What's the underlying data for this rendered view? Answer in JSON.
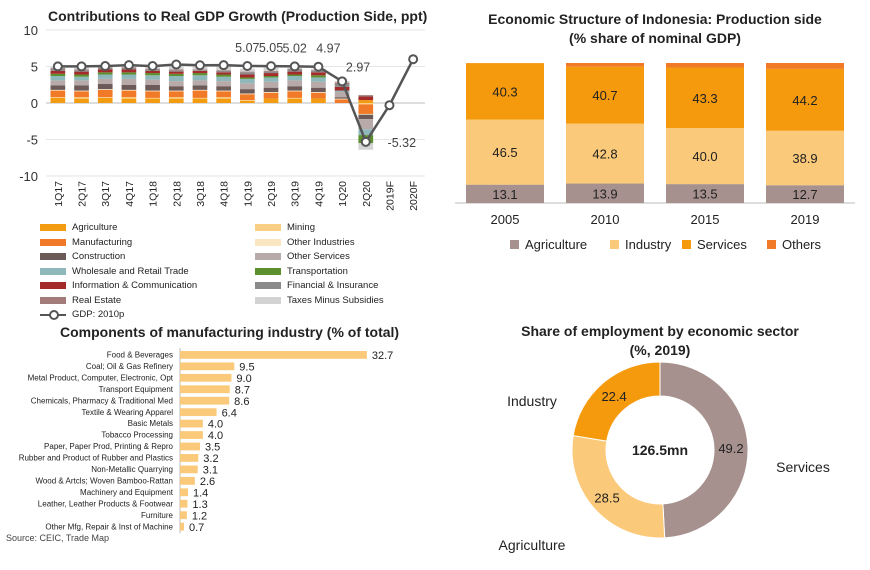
{
  "colors": {
    "agriculture": "#f39c12",
    "mining": "#f9cf86",
    "manufacturing": "#f07a28",
    "other_industries": "#fbe6c2",
    "construction": "#6b5a57",
    "other_services": "#b8aaa8",
    "wholesale": "#8eb8ba",
    "transportation": "#5c8f2d",
    "info_comm": "#a52a2a",
    "financial": "#8a8a8a",
    "real_estate": "#a37c7a",
    "taxes": "#d3d3d3",
    "gdp_line": "#555555",
    "struct_agriculture": "#a6918e",
    "struct_industry": "#fbc97a",
    "struct_services": "#f59a0d",
    "struct_others": "#f07a28",
    "bar_fill": "#fbc97a",
    "donut_services": "#a6918e",
    "donut_agriculture": "#fbc97a",
    "donut_industry": "#f59a0d"
  },
  "source": "Source: CEIC, Trade Map",
  "chart_data": [
    {
      "type": "bar",
      "stacked": true,
      "title": "Contributions to Real GDP Growth (Production Side, ppt)",
      "categories": [
        "1Q17",
        "2Q17",
        "3Q17",
        "4Q17",
        "1Q18",
        "2Q18",
        "3Q18",
        "4Q18",
        "1Q19",
        "2Q19",
        "3Q19",
        "4Q19",
        "1Q20",
        "2Q20",
        "2019F",
        "2020F"
      ],
      "ylim": [
        -10,
        10
      ],
      "yticks": [
        "10",
        "5",
        "0",
        "-5",
        "-10"
      ],
      "yticks_values": [
        10,
        5,
        0,
        -5,
        -10
      ],
      "series": [
        {
          "name": "Agriculture",
          "key": "agriculture",
          "values": [
            0.7,
            0.6,
            0.7,
            0.6,
            0.6,
            0.6,
            0.6,
            0.6,
            0.3,
            0.6,
            0.6,
            0.6,
            0.0,
            0.4,
            null,
            null
          ]
        },
        {
          "name": "Mining",
          "key": "mining",
          "values": [
            0.1,
            0.2,
            0.1,
            0.2,
            0.1,
            0.2,
            0.1,
            0.2,
            0.1,
            0.0,
            0.1,
            0.0,
            0.0,
            -0.2,
            null,
            null
          ]
        },
        {
          "name": "Manufacturing",
          "key": "manufacturing",
          "values": [
            0.9,
            0.8,
            1.0,
            0.9,
            0.9,
            0.8,
            1.0,
            0.8,
            0.8,
            0.8,
            0.9,
            0.8,
            0.5,
            -1.3,
            null,
            null
          ]
        },
        {
          "name": "Other Industries",
          "key": "other_industries",
          "values": [
            0.1,
            0.1,
            0.1,
            0.1,
            0.1,
            0.1,
            0.1,
            0.1,
            0.1,
            0.1,
            0.1,
            0.1,
            0.1,
            -0.1,
            null,
            null
          ]
        },
        {
          "name": "Construction",
          "key": "construction",
          "values": [
            0.6,
            0.7,
            0.7,
            0.7,
            0.8,
            0.6,
            0.6,
            0.6,
            0.6,
            0.6,
            0.6,
            0.6,
            0.2,
            -0.6,
            null,
            null
          ]
        },
        {
          "name": "Other Services",
          "key": "other_services",
          "values": [
            0.7,
            0.7,
            0.7,
            0.8,
            0.7,
            0.7,
            0.7,
            0.7,
            0.8,
            0.8,
            0.8,
            0.8,
            0.7,
            -1.4,
            null,
            null
          ]
        },
        {
          "name": "Wholesale and Retail Trade",
          "key": "wholesale",
          "values": [
            0.6,
            0.5,
            0.6,
            0.6,
            0.6,
            0.7,
            0.7,
            0.6,
            0.6,
            0.6,
            0.6,
            0.6,
            0.2,
            -0.8,
            null,
            null
          ]
        },
        {
          "name": "Transportation",
          "key": "transportation",
          "values": [
            0.3,
            0.3,
            0.3,
            0.3,
            0.3,
            0.3,
            0.3,
            0.3,
            0.2,
            0.2,
            0.2,
            0.3,
            0.0,
            -1.1,
            null,
            null
          ]
        },
        {
          "name": "Information & Communication",
          "key": "info_comm",
          "values": [
            0.4,
            0.4,
            0.4,
            0.4,
            0.3,
            0.3,
            0.3,
            0.3,
            0.4,
            0.4,
            0.4,
            0.4,
            0.5,
            0.5,
            null,
            null
          ]
        },
        {
          "name": "Financial & Insurance",
          "key": "financial",
          "values": [
            0.3,
            0.2,
            0.2,
            0.2,
            0.2,
            0.2,
            0.1,
            0.2,
            0.3,
            0.2,
            0.3,
            0.2,
            0.4,
            0.1,
            null,
            null
          ]
        },
        {
          "name": "Real Estate",
          "key": "real_estate",
          "values": [
            0.1,
            0.1,
            0.1,
            0.1,
            0.1,
            0.1,
            0.1,
            0.1,
            0.1,
            0.1,
            0.1,
            0.1,
            0.2,
            0.1,
            null,
            null
          ]
        },
        {
          "name": "Taxes Minus Subsidies",
          "key": "taxes",
          "values": [
            0.2,
            0.4,
            0.2,
            0.3,
            0.4,
            0.7,
            0.5,
            0.6,
            0.4,
            0.5,
            0.1,
            0.2,
            0.2,
            -0.9,
            null,
            null
          ]
        }
      ],
      "line": {
        "name": "GDP: 2010p",
        "key": "gdp_line",
        "values": [
          5.01,
          5.01,
          5.06,
          5.19,
          5.06,
          5.27,
          5.17,
          5.18,
          5.07,
          5.05,
          5.02,
          4.97,
          2.97,
          -5.32,
          -0.3,
          6.0
        ]
      },
      "data_labels": [
        {
          "index": 8,
          "text": "5.07"
        },
        {
          "index": 9,
          "text": "5.05"
        },
        {
          "index": 10,
          "text": "5.02"
        },
        {
          "index": 11,
          "text": "4.97"
        },
        {
          "index": 12,
          "text": "2.97"
        },
        {
          "index": 13,
          "text": "-5.32"
        }
      ],
      "legend": [
        "Agriculture",
        "Mining",
        "Manufacturing",
        "Other Industries",
        "Construction",
        "Other Services",
        "Wholesale and Retail Trade",
        "Transportation",
        "Information & Communication",
        "Financial & Insurance",
        "Real Estate",
        "Taxes Minus Subsidies",
        "GDP: 2010p"
      ],
      "legend_position": "bottom",
      "grid": true
    },
    {
      "type": "bar",
      "stacked": true,
      "title": "Economic Structure of Indonesia: Production side",
      "subtitle": "(% share of nominal GDP)",
      "categories": [
        "2005",
        "2010",
        "2015",
        "2019"
      ],
      "series": [
        {
          "name": "Agriculture",
          "key": "struct_agriculture",
          "values": [
            13.1,
            13.9,
            13.5,
            12.7
          ],
          "labels": [
            "13.1",
            "13.9",
            "13.5",
            "12.7"
          ]
        },
        {
          "name": "Industry",
          "key": "struct_industry",
          "values": [
            46.5,
            42.8,
            40.0,
            38.9
          ],
          "labels": [
            "46.5",
            "42.8",
            "40.0",
            "38.9"
          ]
        },
        {
          "name": "Services",
          "key": "struct_services",
          "values": [
            40.3,
            40.7,
            43.3,
            44.2
          ],
          "labels": [
            "40.3",
            "40.7",
            "43.3",
            "44.2"
          ]
        },
        {
          "name": "Others",
          "key": "struct_others",
          "values": [
            0.1,
            2.6,
            3.2,
            4.2
          ]
        }
      ],
      "ylim": [
        0,
        100
      ],
      "legend_position": "bottom",
      "grid": false
    },
    {
      "type": "bar",
      "orientation": "horizontal",
      "title": "Components of manufacturing industry (% of total)",
      "categories": [
        "Food & Beverages",
        "Coal; Oil & Gas Refinery",
        "Metal Product, Computer, Electronic, Opt",
        "Transport Equipment",
        "Chemicals, Pharmacy & Traditional Med",
        "Textile & Wearing Apparel",
        "Basic Metals",
        "Tobacco Processing",
        "Paper, Paper Prod, Printing & Repro",
        "Rubber and Product of Rubber and Plastics",
        "Non-Metallic Quarrying",
        "Wood & Artcls; Woven Bamboo-Rattan",
        "Machinery and Equipment",
        "Leather, Leather Products & Footwear",
        "Furniture",
        "Other Mfg, Repair & Inst of Machine"
      ],
      "values": [
        32.7,
        9.5,
        9.0,
        8.7,
        8.6,
        6.4,
        4.0,
        4.0,
        3.5,
        3.2,
        3.1,
        2.6,
        1.4,
        1.3,
        1.2,
        0.7
      ],
      "labels": [
        "32.7",
        "9.5",
        "9.0",
        "8.7",
        "8.6",
        "6.4",
        "4.0",
        "4.0",
        "3.5",
        "3.2",
        "3.1",
        "2.6",
        "1.4",
        "1.3",
        "1.2",
        "0.7"
      ],
      "xlim": [
        0,
        35
      ],
      "grid": false
    },
    {
      "type": "pie",
      "donut": true,
      "title": "Share of employment by economic sector",
      "subtitle": "(%, 2019)",
      "center_label": "126.5mn",
      "slices": [
        {
          "name": "Services",
          "key": "donut_services",
          "value": 49.2,
          "label": "49.2"
        },
        {
          "name": "Agriculture",
          "key": "donut_agriculture",
          "value": 28.5,
          "label": "28.5"
        },
        {
          "name": "Industry",
          "key": "donut_industry",
          "value": 22.4,
          "label": "22.4"
        }
      ]
    }
  ]
}
